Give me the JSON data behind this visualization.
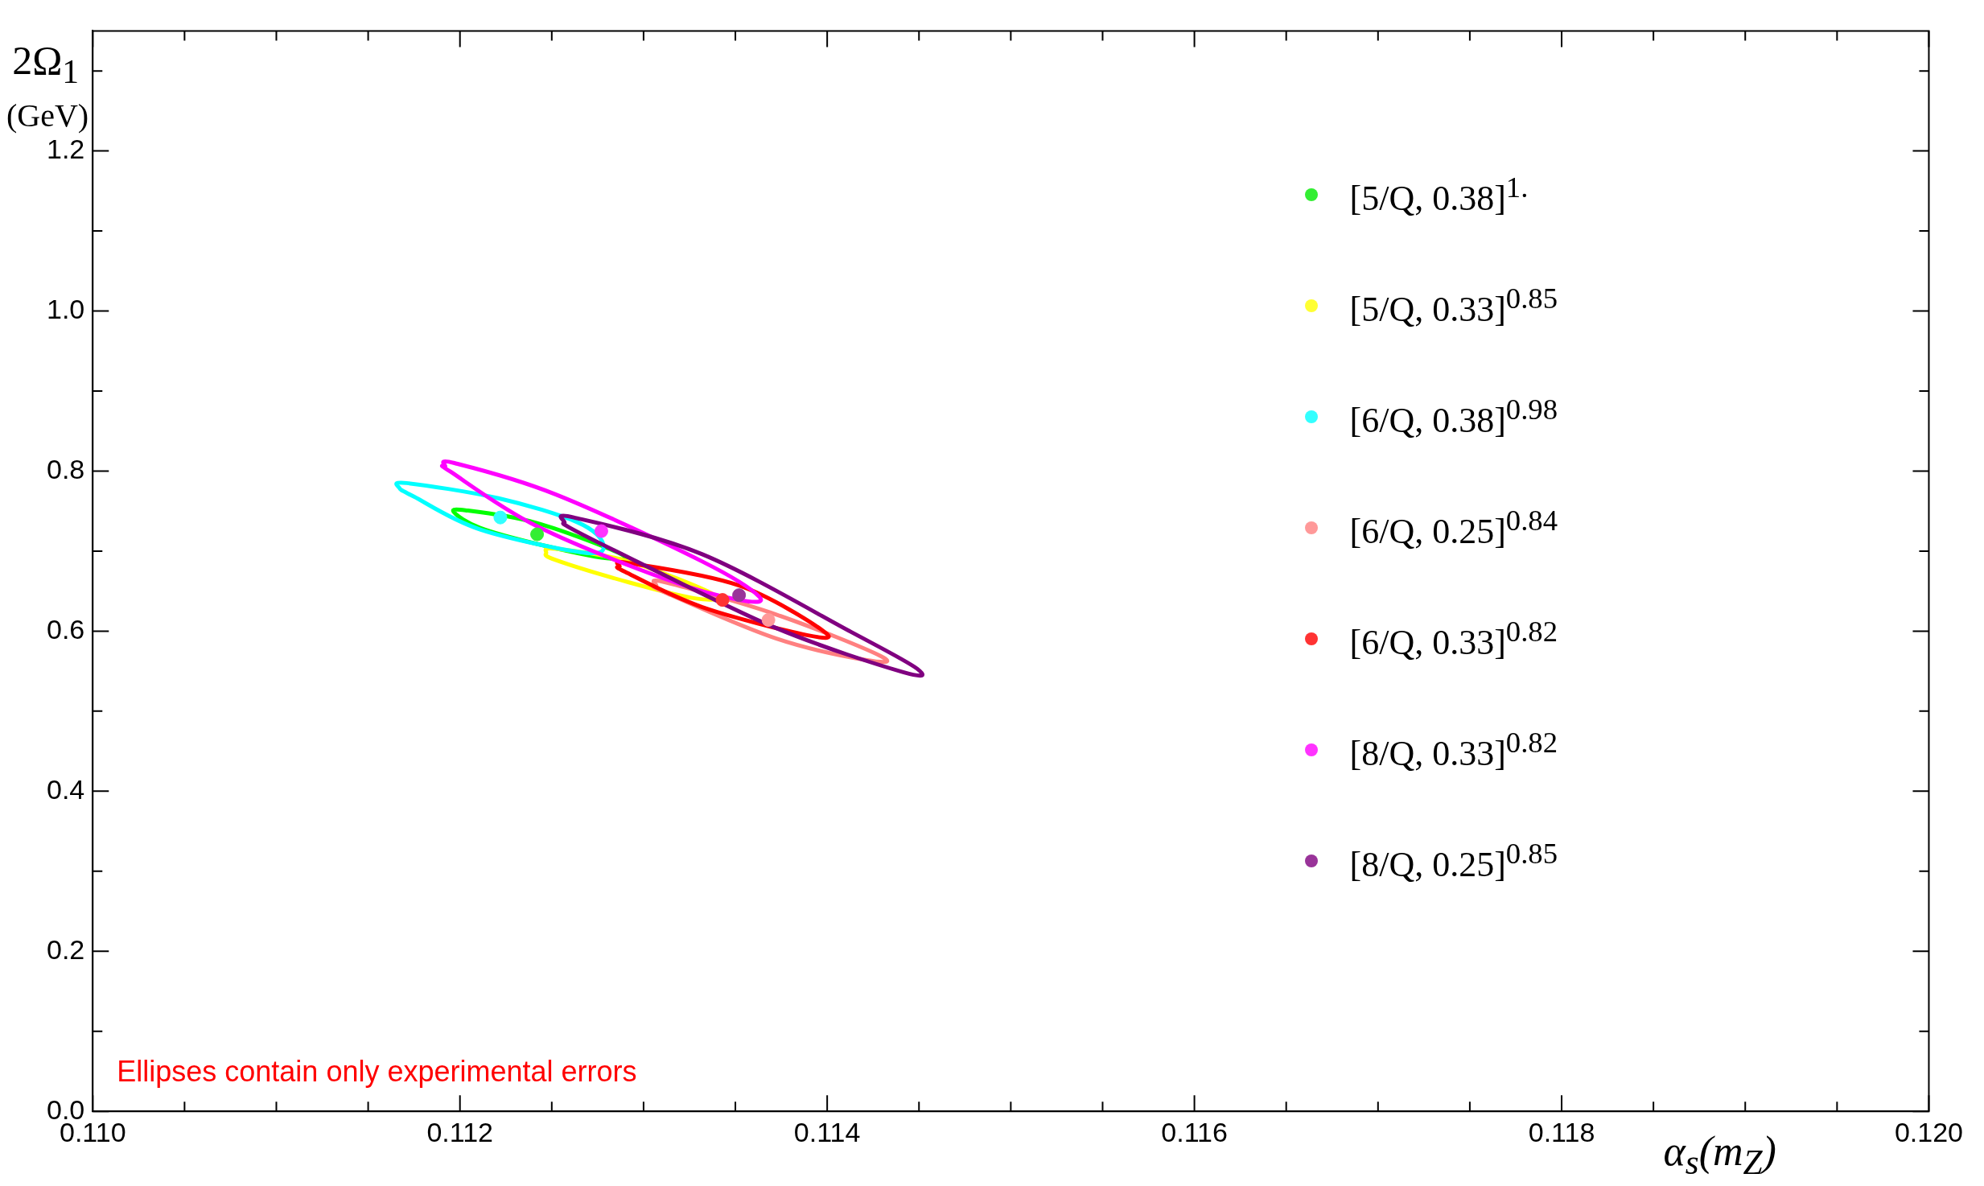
{
  "chart_data": {
    "type": "scatter",
    "xlabel": "α$_{s}$(m$_{Z}$)",
    "ylabel": "2Ω$_{1}$ (GeV)",
    "annotations": [
      "Ellipses contain only experimental errors"
    ],
    "xlim": [
      0.11,
      0.12
    ],
    "ylim": [
      0,
      1.35
    ],
    "xticks": [
      {
        "value": 0.11,
        "label": "0.110"
      },
      {
        "value": 0.1105,
        "label": null
      },
      {
        "value": 0.111,
        "label": null
      },
      {
        "value": 0.1115,
        "label": null
      },
      {
        "value": 0.112,
        "label": "0.112"
      },
      {
        "value": 0.1125,
        "label": null
      },
      {
        "value": 0.113,
        "label": null
      },
      {
        "value": 0.1135,
        "label": null
      },
      {
        "value": 0.114,
        "label": "0.114"
      },
      {
        "value": 0.1145,
        "label": null
      },
      {
        "value": 0.115,
        "label": null
      },
      {
        "value": 0.1155,
        "label": null
      },
      {
        "value": 0.116,
        "label": "0.116"
      },
      {
        "value": 0.1165,
        "label": null
      },
      {
        "value": 0.117,
        "label": null
      },
      {
        "value": 0.1175,
        "label": null
      },
      {
        "value": 0.118,
        "label": "0.118"
      },
      {
        "value": 0.1185,
        "label": null
      },
      {
        "value": 0.119,
        "label": null
      },
      {
        "value": 0.1195,
        "label": null
      },
      {
        "value": 0.12,
        "label": "0.120"
      }
    ],
    "yticks": [
      {
        "value": 0,
        "label": "0.0"
      },
      {
        "value": 0.1,
        "label": null
      },
      {
        "value": 0.2,
        "label": "0.2"
      },
      {
        "value": 0.3,
        "label": null
      },
      {
        "value": 0.4,
        "label": "0.4"
      },
      {
        "value": 0.5,
        "label": null
      },
      {
        "value": 0.6,
        "label": "0.6"
      },
      {
        "value": 0.7,
        "label": null
      },
      {
        "value": 0.8,
        "label": "0.8"
      },
      {
        "value": 0.9,
        "label": null
      },
      {
        "value": 1,
        "label": "1.0"
      },
      {
        "value": 1.1,
        "label": null
      },
      {
        "value": 1.2,
        "label": "1.2"
      },
      {
        "value": 1.3,
        "label": null
      }
    ],
    "grid": false,
    "legend": "right",
    "marker": "circle",
    "series": [
      {
        "type": "scatter",
        "name": "[5/Q, 0.38]$^{1.}$",
        "color": "#33ee33",
        "x": [
          0.11242
        ],
        "values": [
          0.721
        ]
      },
      {
        "type": "scatter",
        "name": "[5/Q, 0.33]$^{0.85}$",
        "color": "#ffff33"
      },
      {
        "type": "scatter",
        "name": "[6/Q, 0.38]$^{0.98}$",
        "color": "#33ffff",
        "x": [
          0.11222
        ],
        "values": [
          0.742
        ]
      },
      {
        "type": "scatter",
        "name": "[6/Q, 0.25]$^{0.84}$",
        "color": "#ff9999",
        "x": [
          0.11368
        ],
        "values": [
          0.614
        ]
      },
      {
        "type": "scatter",
        "name": "[6/Q, 0.33]$^{0.82}$",
        "color": "#ff3333",
        "x": [
          0.11343
        ],
        "values": [
          0.639
        ]
      },
      {
        "type": "scatter",
        "name": "[8/Q, 0.33]$^{0.82}$",
        "color": "#ff33ff",
        "x": [
          0.11277
        ],
        "values": [
          0.725
        ]
      },
      {
        "type": "scatter",
        "name": "[8/Q, 0.25]$^{0.85}$",
        "color": "#993399",
        "x": [
          0.11352
        ],
        "values": [
          0.645
        ]
      }
    ]
  }
}
